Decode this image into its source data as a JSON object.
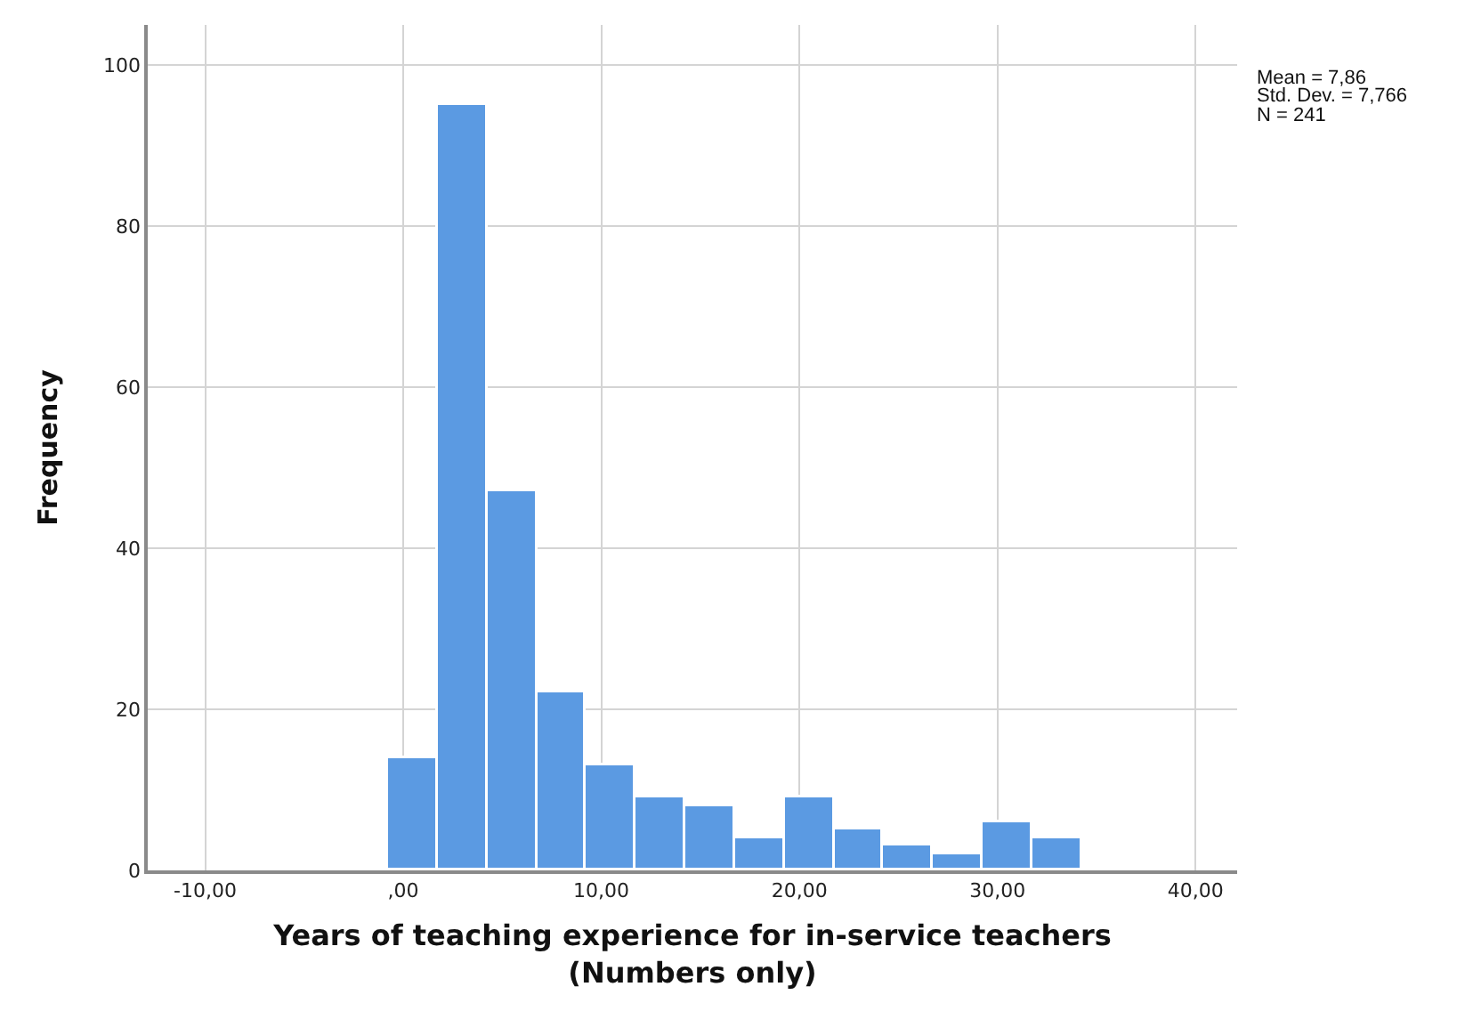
{
  "chart_data": {
    "type": "histogram",
    "xlabel": "Years of teaching experience for in-service teachers\n(Numbers only)",
    "ylabel": "Frequency",
    "bins": [
      -0.75,
      1.75,
      4.25,
      6.75,
      9.25,
      11.75,
      14.25,
      16.75,
      19.25,
      21.75,
      24.25,
      26.75,
      29.25,
      31.75,
      34.25
    ],
    "values": [
      14,
      95,
      47,
      22,
      13,
      9,
      8,
      4,
      9,
      5,
      3,
      2,
      6,
      4
    ],
    "color": "#5b9ae2",
    "xlim": [
      -12.9,
      42.1
    ],
    "xticks": [
      {
        "value": -10,
        "label": "-10,00"
      },
      {
        "value": 0,
        "label": ",00"
      },
      {
        "value": 10,
        "label": "10,00"
      },
      {
        "value": 20,
        "label": "20,00"
      },
      {
        "value": 30,
        "label": "30,00"
      },
      {
        "value": 40,
        "label": "40,00"
      }
    ],
    "ylim": [
      0,
      105
    ],
    "yticks": [
      0,
      20,
      40,
      60,
      80,
      100
    ],
    "grid": true,
    "annotations": [
      "Mean = 7,86",
      "Std. Dev. = 7,766",
      "N = 241"
    ]
  }
}
